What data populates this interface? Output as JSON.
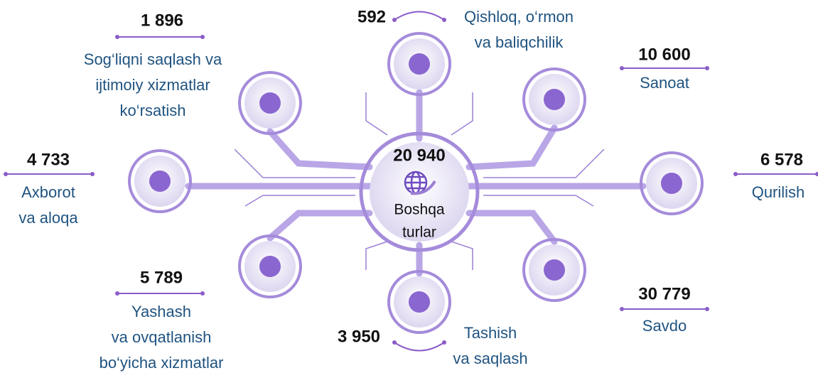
{
  "center": {
    "value": "20 940",
    "label": [
      "Boshqa",
      "turlar"
    ]
  },
  "items": [
    {
      "value": "1 896",
      "label": [
        "Sog‘liqni saqlash va",
        "ijtimoiy xizmatlar",
        "ko‘rsatish"
      ]
    },
    {
      "value": "592",
      "label": [
        "Qishloq, o‘rmon",
        "va baliqchilik"
      ]
    },
    {
      "value": "10 600",
      "label": [
        "Sanoat"
      ]
    },
    {
      "value": "4 733",
      "label": [
        "Axborot",
        "va aloqa"
      ]
    },
    {
      "value": "6 578",
      "label": [
        "Qurilish"
      ]
    },
    {
      "value": "5 789",
      "label": [
        "Yashash",
        "va ovqatlanish",
        "bo‘yicha xizmatlar"
      ]
    },
    {
      "value": "3 950",
      "label": [
        "Tashish",
        "va saqlash"
      ]
    },
    {
      "value": "30 779",
      "label": [
        "Savdo"
      ]
    }
  ]
}
